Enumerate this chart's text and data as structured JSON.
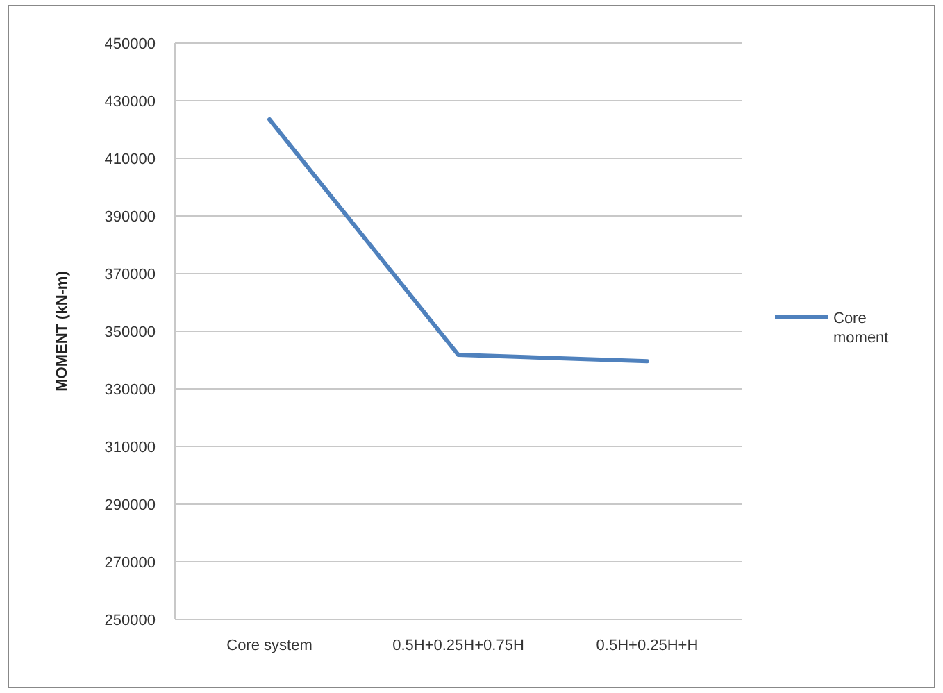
{
  "chart_data": {
    "type": "line",
    "ylabel": "MOMENT (kN-m)",
    "categories": [
      "Core system",
      "0.5H+0.25H+0.75H",
      "0.5H+0.25H+H"
    ],
    "series": [
      {
        "name": "Core moment",
        "color": "#4f81bd",
        "values": [
          423500,
          341800,
          339600
        ]
      }
    ],
    "ylim": [
      250000,
      450000
    ],
    "yticks": [
      250000,
      270000,
      290000,
      310000,
      330000,
      350000,
      370000,
      390000,
      410000,
      430000,
      450000
    ],
    "grid": "y",
    "legend": "right",
    "marker": "none",
    "line_style": "solid"
  }
}
